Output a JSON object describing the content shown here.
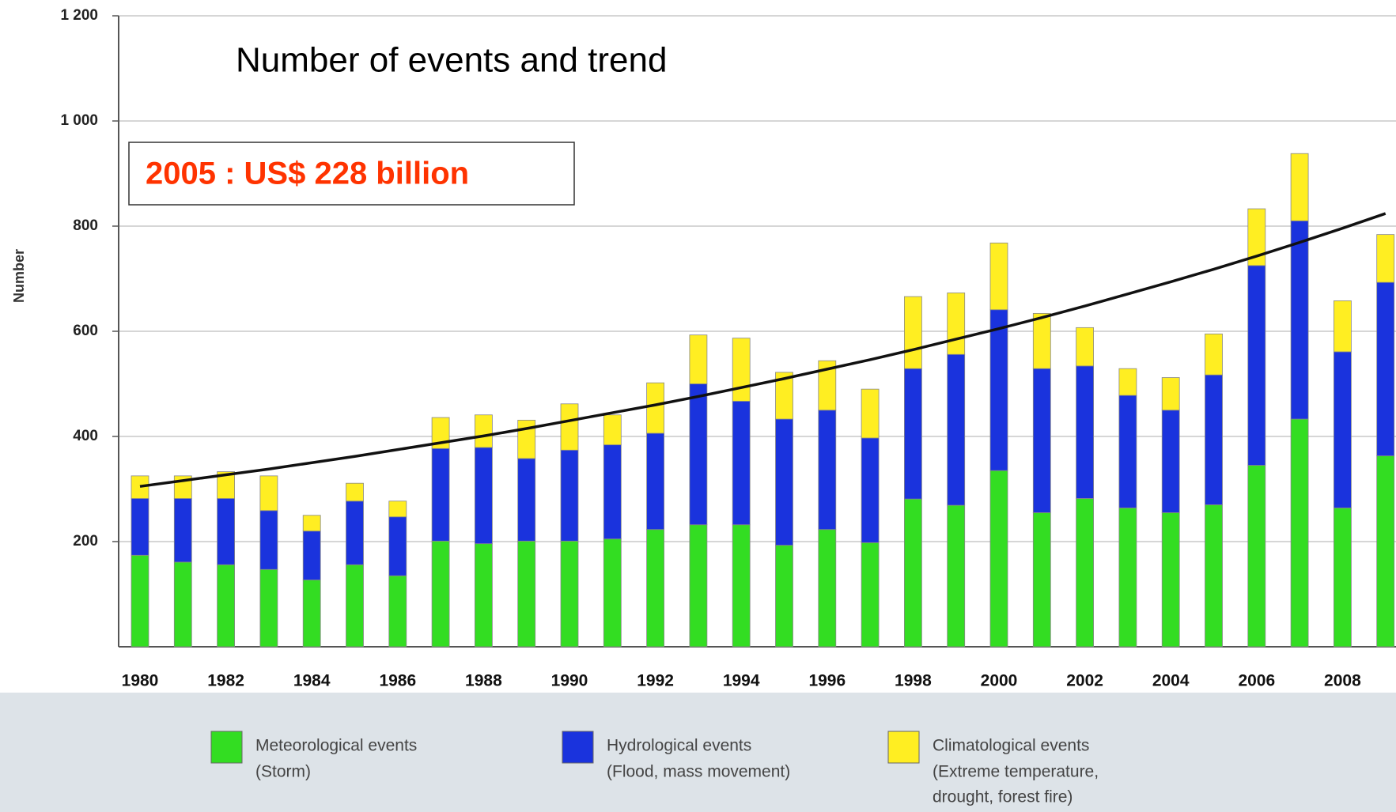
{
  "chart_data": {
    "type": "stacked_bar",
    "title": "Number of events and trend",
    "ylabel": "Number",
    "annotation": "2005 : US$ 228 billion",
    "categories": [
      "1980",
      null,
      "1982",
      null,
      "1984",
      null,
      "1986",
      null,
      "1988",
      null,
      "1990",
      null,
      "1992",
      null,
      "1994",
      null,
      "1996",
      null,
      "1998",
      null,
      "2000",
      null,
      "2002",
      null,
      "2004",
      null,
      "2006",
      null,
      "2008",
      null
    ],
    "series": [
      {
        "name": "Meteorological events",
        "description": [
          "(Storm)"
        ],
        "color": "#33dd22",
        "values": [
          174,
          161,
          156,
          147,
          127,
          156,
          135,
          201,
          196,
          201,
          201,
          205,
          223,
          232,
          232,
          193,
          223,
          198,
          281,
          269,
          335,
          255,
          282,
          264,
          255,
          270,
          345,
          433,
          264,
          363
        ]
      },
      {
        "name": "Hydrological events",
        "description": [
          "(Flood, mass movement)"
        ],
        "color": "#1a33dd",
        "values": [
          108,
          121,
          126,
          112,
          93,
          121,
          112,
          176,
          183,
          157,
          173,
          179,
          183,
          268,
          235,
          240,
          227,
          199,
          248,
          287,
          306,
          274,
          252,
          214,
          195,
          247,
          380,
          377,
          297,
          330
        ]
      },
      {
        "name": "Climatological events",
        "description": [
          "(Extreme temperature,",
          "drought, forest fire)"
        ],
        "color": "#ffee22",
        "values": [
          43,
          43,
          51,
          66,
          30,
          34,
          30,
          59,
          62,
          73,
          88,
          57,
          96,
          93,
          120,
          89,
          94,
          93,
          137,
          117,
          127,
          105,
          73,
          51,
          62,
          78,
          108,
          128,
          97,
          91
        ]
      }
    ],
    "trend": {
      "color": "#111111",
      "values": [
        305,
        316,
        327,
        338,
        350,
        362,
        375,
        388,
        401,
        415,
        430,
        445,
        460,
        476,
        493,
        510,
        528,
        546,
        565,
        585,
        605,
        626,
        648,
        671,
        694,
        718,
        743,
        769,
        796,
        824
      ]
    },
    "ylim": [
      0,
      1200
    ],
    "yticks": [
      200,
      400,
      600,
      800,
      {
        "value": 1000,
        "label": "1 000"
      },
      {
        "value": 1200,
        "label": "1 200"
      }
    ],
    "grid": true
  }
}
